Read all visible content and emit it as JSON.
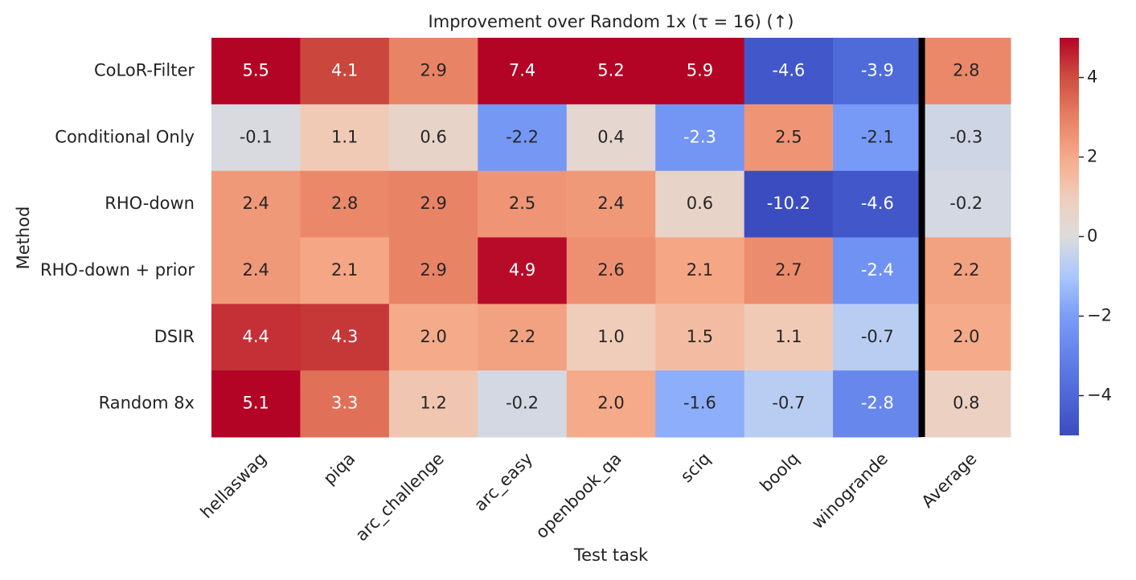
{
  "chart_data": {
    "type": "heatmap",
    "title": "Improvement over Random 1x (τ = 16) (↑)",
    "xlabel": "Test task",
    "ylabel": "Method",
    "x_categories": [
      "hellaswag",
      "piqa",
      "arc_challenge",
      "arc_easy",
      "openbook_qa",
      "sciq",
      "boolq",
      "winogrande",
      "Average"
    ],
    "y_categories": [
      "CoLoR-Filter",
      "Conditional Only",
      "RHO-down",
      "RHO-down + prior",
      "DSIR",
      "Random 8x"
    ],
    "values": [
      [
        5.5,
        4.1,
        2.9,
        7.4,
        5.2,
        5.9,
        -4.6,
        -3.9,
        2.8
      ],
      [
        -0.1,
        1.1,
        0.6,
        -2.2,
        0.4,
        -2.3,
        2.5,
        -2.1,
        -0.3
      ],
      [
        2.4,
        2.8,
        2.9,
        2.5,
        2.4,
        0.6,
        -10.2,
        -4.6,
        -0.2
      ],
      [
        2.4,
        2.1,
        2.9,
        4.9,
        2.6,
        2.1,
        2.7,
        -2.4,
        2.2
      ],
      [
        4.4,
        4.3,
        2.0,
        2.2,
        1.0,
        1.5,
        1.1,
        -0.7,
        2.0
      ],
      [
        5.1,
        3.3,
        1.2,
        -0.2,
        2.0,
        -1.6,
        -0.7,
        -2.8,
        0.8
      ]
    ],
    "value_labels": [
      [
        "5.5",
        "4.1",
        "2.9",
        "7.4",
        "5.2",
        "5.9",
        "-4.6",
        "-3.9",
        "2.8"
      ],
      [
        "-0.1",
        "1.1",
        "0.6",
        "-2.2",
        "0.4",
        "-2.3",
        "2.5",
        "-2.1",
        "-0.3"
      ],
      [
        "2.4",
        "2.8",
        "2.9",
        "2.5",
        "2.4",
        "0.6",
        "-10.2",
        "-4.6",
        "-0.2"
      ],
      [
        "2.4",
        "2.1",
        "2.9",
        "4.9",
        "2.6",
        "2.1",
        "2.7",
        "-2.4",
        "2.2"
      ],
      [
        "4.4",
        "4.3",
        "2.0",
        "2.2",
        "1.0",
        "1.5",
        "1.1",
        "-0.7",
        "2.0"
      ],
      [
        "5.1",
        "3.3",
        "1.2",
        "-0.2",
        "2.0",
        "-1.6",
        "-0.7",
        "-2.8",
        "0.8"
      ]
    ],
    "colormap": [
      "#3b4cc0",
      "#4d68d7",
      "#6282ea",
      "#7a9df8",
      "#aac7fd",
      "#dddcdc",
      "#f0cdbb",
      "#f5aa89",
      "#e87f62",
      "#ce4e40",
      "#b40426"
    ],
    "zlim": [
      -5,
      5
    ],
    "zticks": [
      {
        "value": -4,
        "label": "−4"
      },
      {
        "value": -2,
        "label": "−2"
      },
      0,
      2,
      4
    ],
    "separator_before_index": 8
  }
}
